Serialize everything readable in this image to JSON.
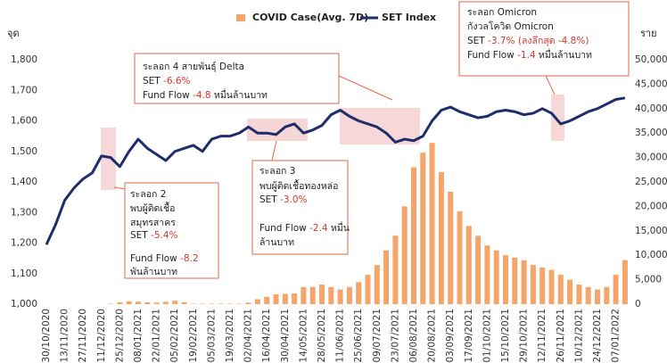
{
  "chart_data": {
    "type": "combo",
    "y_label": "จุด",
    "y2_label": "ราย",
    "ylim": [
      1000,
      1800
    ],
    "yticks": [
      {
        "value": 1000,
        "label": "1,000"
      },
      {
        "value": 1100,
        "label": "1,100"
      },
      {
        "value": 1200,
        "label": "1,200"
      },
      {
        "value": 1300,
        "label": "1,300"
      },
      {
        "value": 1400,
        "label": "1,400"
      },
      {
        "value": 1500,
        "label": "1,500"
      },
      {
        "value": 1600,
        "label": "1,600"
      },
      {
        "value": 1700,
        "label": "1,700"
      },
      {
        "value": 1800,
        "label": "1,800"
      }
    ],
    "y2lim": [
      0,
      50000
    ],
    "y2ticks": [
      0,
      {
        "value": 5000,
        "label": "5,000"
      },
      {
        "value": 10000,
        "label": "10,000"
      },
      {
        "value": 15000,
        "label": "15,000"
      },
      {
        "value": 20000,
        "label": "20,000"
      },
      {
        "value": 25000,
        "label": "25,000"
      },
      {
        "value": 30000,
        "label": "30,000"
      },
      {
        "value": 35000,
        "label": "35,000"
      },
      {
        "value": 40000,
        "label": "40,000"
      },
      {
        "value": 45000,
        "label": "45,000"
      },
      {
        "value": 50000,
        "label": "50,000"
      }
    ],
    "categories": [
      "30/10/2020",
      null,
      "13/11/2020",
      null,
      "27/11/2020",
      null,
      "11/12/2020",
      null,
      "25/12/2020",
      null,
      "08/01/2021",
      null,
      "22/01/2021",
      null,
      "05/02/2021",
      null,
      "19/02/2021",
      null,
      "05/03/2021",
      null,
      "19/03/2021",
      null,
      "02/04/2021",
      null,
      "16/04/2021",
      null,
      "30/04/2021",
      null,
      "14/05/2021",
      null,
      "28/05/2021",
      null,
      "11/06/2021",
      null,
      "25/06/2021",
      null,
      "09/07/2021",
      null,
      "23/07/2021",
      null,
      "06/08/2021",
      null,
      "20/08/2021",
      null,
      "03/09/2021",
      null,
      "17/09/2021",
      null,
      "01/10/2021",
      null,
      "15/10/2021",
      null,
      "29/10/2021",
      null,
      "12/11/2021",
      null,
      "26/11/2021",
      null,
      "10/12/2021",
      null,
      "24/12/2021",
      null,
      "07/01/2022",
      null
    ],
    "series": [
      {
        "name": "COVID Case(Avg. 7D)",
        "type": "bar",
        "axis": "y2",
        "color": "#f5a56a",
        "values": [
          0,
          0,
          0,
          0,
          0,
          0,
          0,
          100,
          400,
          600,
          500,
          400,
          300,
          500,
          700,
          400,
          100,
          100,
          100,
          100,
          100,
          100,
          300,
          1000,
          1500,
          2000,
          2100,
          2200,
          3500,
          3500,
          4000,
          3500,
          3000,
          3500,
          4500,
          6000,
          8000,
          11000,
          14000,
          20000,
          28000,
          31000,
          33000,
          27000,
          23000,
          19000,
          16000,
          14000,
          12000,
          11000,
          10000,
          9500,
          9000,
          8000,
          7500,
          7000,
          6000,
          5000,
          4000,
          3500,
          3000,
          3500,
          6000,
          9000
        ]
      },
      {
        "name": "SET Index",
        "type": "line",
        "color": "#1f2d6b",
        "values": [
          1195,
          1260,
          1340,
          1380,
          1410,
          1430,
          1485,
          1480,
          1450,
          1500,
          1540,
          1510,
          1490,
          1470,
          1500,
          1510,
          1520,
          1500,
          1540,
          1550,
          1550,
          1560,
          1580,
          1560,
          1560,
          1555,
          1580,
          1590,
          1560,
          1570,
          1585,
          1620,
          1635,
          1615,
          1600,
          1590,
          1580,
          1560,
          1530,
          1540,
          1535,
          1550,
          1600,
          1635,
          1645,
          1630,
          1620,
          1610,
          1615,
          1630,
          1635,
          1630,
          1620,
          1625,
          1640,
          1625,
          1590,
          1600,
          1615,
          1630,
          1640,
          1655,
          1670,
          1675
        ]
      }
    ],
    "annotations": [
      {
        "lines": [
          [
            "ระลอก 4 สายพันธุ์ Delta"
          ],
          [
            "SET ",
            "-6.6%"
          ],
          [
            "Fund Flow ",
            "-4.8",
            " หมื่นล้านบาท"
          ]
        ]
      },
      {
        "lines": [
          [
            "ระลอก 2"
          ],
          [
            "พบผู้ติดเชื้อ"
          ],
          [
            "สมุทรสาคร"
          ],
          [
            "SET ",
            "-5.4%"
          ],
          [
            "Fund Flow ",
            "-8.2"
          ],
          [
            "พันล้านบาท"
          ]
        ]
      },
      {
        "lines": [
          [
            "ระลอก 3"
          ],
          [
            "พบผู้ติดเชื้อทองหล่อ"
          ],
          [
            "SET ",
            "-3.0%"
          ],
          [
            "Fund Flow ",
            "-2.4",
            " หมื่น"
          ],
          [
            "ล้านบาท"
          ]
        ]
      },
      {
        "lines": [
          [
            "ระลอก Omicron"
          ],
          [
            "กังวลโควิด Omicron"
          ],
          [
            "SET ",
            "-3.7% (ลงลึกสุด -4.8%)"
          ],
          [
            "Fund Flow ",
            "-1.4",
            " หมื่นล้านบาท"
          ]
        ]
      }
    ]
  }
}
